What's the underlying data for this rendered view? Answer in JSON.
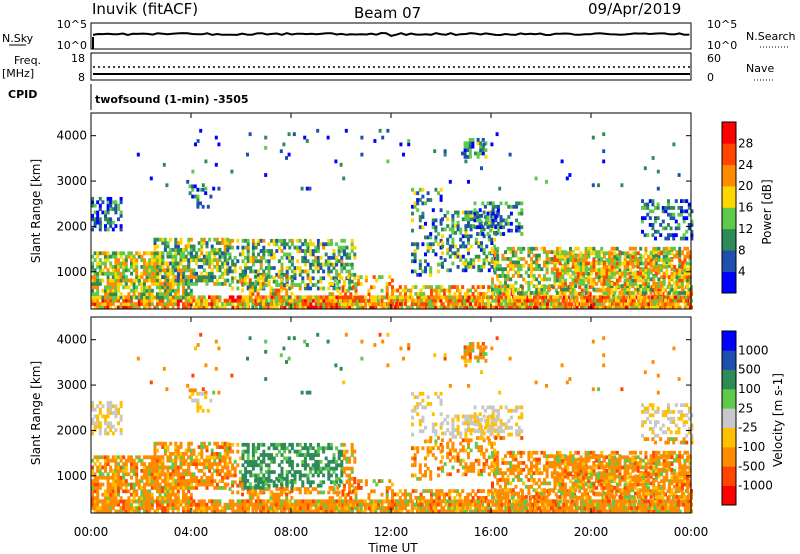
{
  "header": {
    "station": "Inuvik (fitACF)",
    "beam": "Beam 07",
    "date": "09/Apr/2019"
  },
  "noise_panel": {
    "left_label": "N.Sky",
    "left_ticks": [
      "10^5",
      "10^0"
    ],
    "right_ticks": [
      "10^5",
      "10^0"
    ],
    "right_label": "N.Search"
  },
  "freq_panel": {
    "left_label_1": "Freq.",
    "left_label_2": "[MHz]",
    "left_ticks": [
      "18",
      "8"
    ],
    "right_ticks": [
      "60",
      "0"
    ],
    "right_label": "Nave"
  },
  "cpid": {
    "label": "CPID",
    "value": "twofsound (1-min) -3505"
  },
  "colors": {
    "power": [
      "#0000ff",
      "#1f4fae",
      "#2e8b57",
      "#5ec94a",
      "#ffd700",
      "#ff8c00",
      "#ff4500",
      "#ff0000"
    ],
    "velocity": [
      "#ff0000",
      "#ff4500",
      "#ff8c00",
      "#ffc000",
      "#c8c8c8",
      "#5ec94a",
      "#2e8b57",
      "#1f4fae",
      "#0000ff"
    ]
  },
  "chart_data": [
    {
      "type": "heatmap",
      "name": "power",
      "ylabel": "Slant Range [km]",
      "ylim": [
        180,
        4500
      ],
      "yticks": [
        "1000",
        "2000",
        "3000",
        "4000"
      ],
      "colorbar_label": "Power [dB]",
      "colorbar_ticks": [
        "4",
        "8",
        "12",
        "16",
        "20",
        "24",
        "28"
      ],
      "clim": [
        0,
        32
      ]
    },
    {
      "type": "heatmap",
      "name": "velocity",
      "ylabel": "Slant Range [km]",
      "ylim": [
        180,
        4500
      ],
      "yticks": [
        "1000",
        "2000",
        "3000",
        "4000"
      ],
      "colorbar_label": "Velocity [m s-1]",
      "colorbar_ticks": [
        "1000",
        "500",
        "100",
        "25",
        "-25",
        "-100",
        "-500",
        "-1000"
      ]
    }
  ],
  "time_axis": {
    "label": "Time UT",
    "ticks": [
      "00:00",
      "04:00",
      "08:00",
      "12:00",
      "16:00",
      "20:00",
      "00:00"
    ]
  }
}
